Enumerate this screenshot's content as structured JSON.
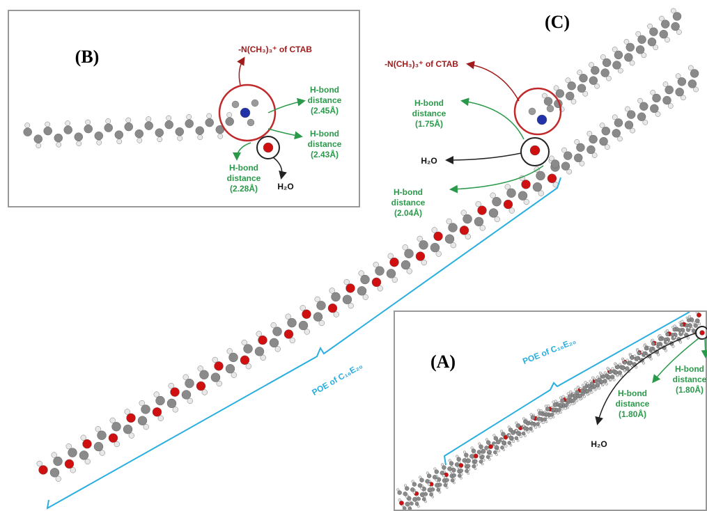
{
  "panels": [
    {
      "label": "(B)",
      "ctab": "-N(CH₃)₃⁺ of CTAB",
      "water": "H₂O",
      "hbonds": [
        [
          "H-bond",
          "distance",
          "(2.45Å)"
        ],
        [
          "H-bond",
          "distance",
          "(2.43Å)"
        ],
        [
          "H-bond",
          "distance",
          "(2.28Å)"
        ]
      ]
    },
    {
      "label": "(C)",
      "ctab": "-N(CH₃)₃⁺ of CTAB",
      "water": "H₂O",
      "hbonds": [
        [
          "H-bond",
          "distance",
          "(1.75Å)"
        ],
        [
          "H-bond",
          "distance",
          "(2.04Å)"
        ]
      ],
      "poe": "POE of C₁₆E₂₀"
    },
    {
      "label": "(A)",
      "water": "H₂O",
      "hbonds": [
        [
          "H-bond",
          "distance",
          "(1.80Å)"
        ],
        [
          "H-bond",
          "distance",
          "(1.80Å)"
        ]
      ],
      "poe": "POE of C₁₆E₂₀"
    }
  ]
}
